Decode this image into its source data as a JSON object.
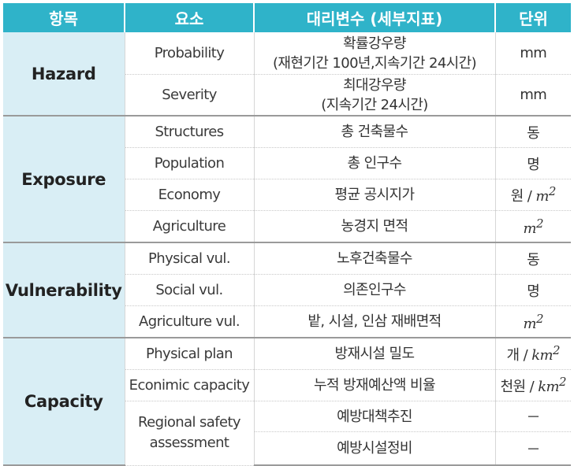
{
  "header": {
    "col1": "항목",
    "col2": "요소",
    "col3": "대리변수 (세부지표)",
    "col4": "단위"
  },
  "groups": [
    {
      "category": "Hazard",
      "rows": [
        {
          "element": "Probability",
          "proxy_line1": "확률강우량",
          "proxy_line2": "(재현기간 100년,지속기간 24시간)",
          "unit": "mm"
        },
        {
          "element": "Severity",
          "proxy_line1": "최대강우량",
          "proxy_line2": "(지속기간 24시간)",
          "unit": "mm"
        }
      ]
    },
    {
      "category": "Exposure",
      "rows": [
        {
          "element": "Structures",
          "proxy": "총 건축물수",
          "unit": "동"
        },
        {
          "element": "Population",
          "proxy": "총 인구수",
          "unit": "명"
        },
        {
          "element": "Economy",
          "proxy": "평균 공시지가",
          "unit_prefix": "원 / ",
          "unit_base": "m",
          "unit_exp": "2"
        },
        {
          "element": "Agriculture",
          "proxy": "농경지 면적",
          "unit_base": "m",
          "unit_exp": "2"
        }
      ]
    },
    {
      "category": "Vulnerability",
      "rows": [
        {
          "element": "Physical vul.",
          "proxy": "노후건축물수",
          "unit": "동"
        },
        {
          "element": "Social vul.",
          "proxy": "의존인구수",
          "unit": "명"
        },
        {
          "element": "Agriculture vul.",
          "proxy": "밭, 시설, 인삼 재배면적",
          "unit_base": "m",
          "unit_exp": "2"
        }
      ]
    },
    {
      "category": "Capacity",
      "rows": [
        {
          "element": "Physical plan",
          "proxy": "방재시설 밀도",
          "unit_prefix": "개 / ",
          "unit_base": "km",
          "unit_exp": "2"
        },
        {
          "element": "Econimic capacity",
          "proxy": "누적 방재예산액 비율",
          "unit_prefix": "천원 / ",
          "unit_base": "km",
          "unit_exp": "2"
        },
        {
          "element_line1": "Regional safety",
          "element_line2": "assessment",
          "proxy": "예방대책추진",
          "unit": "－"
        },
        {
          "proxy": "예방시설정비",
          "unit": "－"
        }
      ]
    }
  ]
}
